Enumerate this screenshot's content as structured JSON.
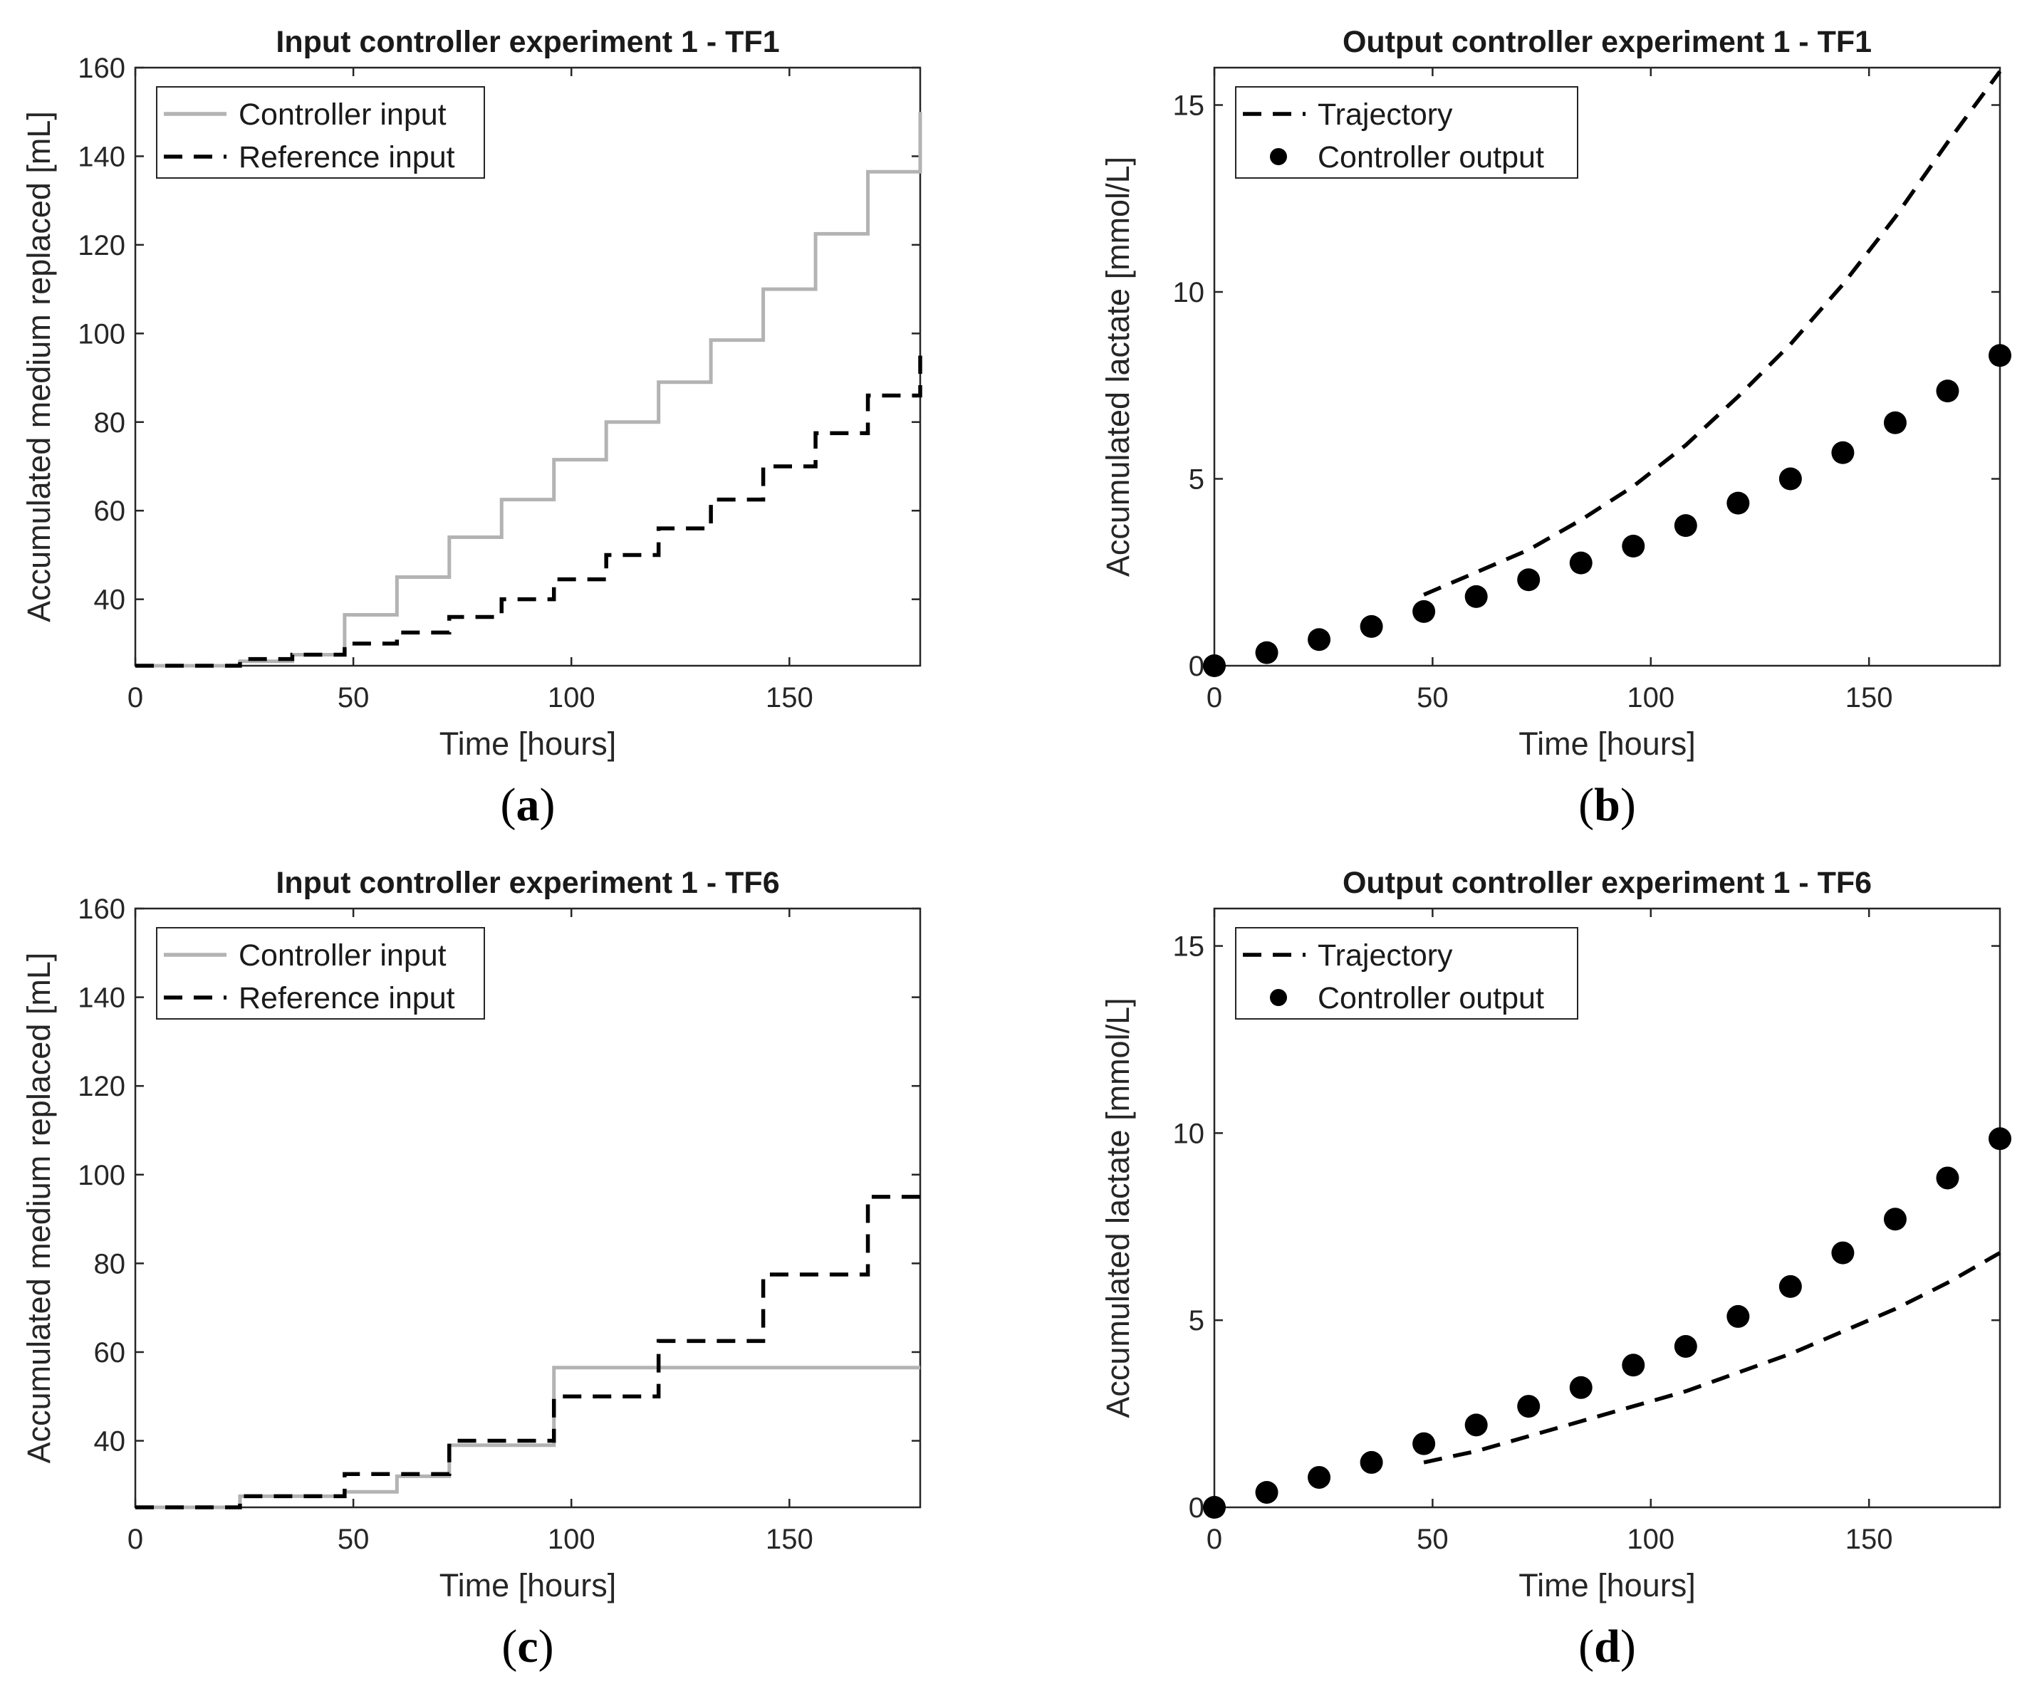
{
  "chart_data": [
    {
      "id": "a",
      "type": "line",
      "panel_label": "(a)",
      "panel_letter": "a",
      "title": "Input controller experiment 1 - TF1",
      "xlabel": "Time [hours]",
      "ylabel": "Accumulated medium replaced [mL]",
      "xlim": [
        0,
        180
      ],
      "ylim": [
        25,
        160
      ],
      "xticks": [
        "0",
        "50",
        "100",
        "150"
      ],
      "yticks": [
        "40",
        "60",
        "80",
        "100",
        "120",
        "140",
        "160"
      ],
      "legend_position": "top-left",
      "series": [
        {
          "name": "Controller input",
          "style": "step-solid",
          "color": "#b3b3b3",
          "x": [
            0,
            24,
            36,
            48,
            60,
            72,
            84,
            96,
            108,
            120,
            132,
            144,
            156,
            168,
            180
          ],
          "y": [
            25,
            26,
            27.5,
            36.5,
            45,
            54,
            62.5,
            71.5,
            80,
            89,
            98.5,
            110,
            122.5,
            136.5,
            150
          ]
        },
        {
          "name": "Reference input",
          "style": "step-dashed",
          "color": "#000000",
          "x": [
            0,
            24,
            36,
            48,
            60,
            72,
            84,
            96,
            108,
            120,
            132,
            144,
            156,
            168,
            180
          ],
          "y": [
            25,
            26.5,
            27.5,
            30,
            32.5,
            36,
            40,
            44.5,
            50,
            56,
            62.5,
            70,
            77.5,
            86,
            95
          ]
        }
      ]
    },
    {
      "id": "b",
      "type": "line",
      "panel_label": "(b)",
      "panel_letter": "b",
      "title": "Output controller experiment 1 - TF1",
      "xlabel": "Time [hours]",
      "ylabel": "Accumulated lactate [mmol/L]",
      "xlim": [
        0,
        180
      ],
      "ylim": [
        0,
        16
      ],
      "xticks": [
        "0",
        "50",
        "100",
        "150"
      ],
      "yticks": [
        "0",
        "5",
        "10",
        "15"
      ],
      "legend_position": "top-left",
      "series": [
        {
          "name": "Trajectory",
          "style": "dashed",
          "color": "#000000",
          "x": [
            48,
            60,
            72,
            84,
            96,
            108,
            120,
            132,
            144,
            156,
            168,
            180
          ],
          "y": [
            1.9,
            2.5,
            3.1,
            3.9,
            4.8,
            5.9,
            7.2,
            8.6,
            10.2,
            12.0,
            14.0,
            15.9
          ]
        },
        {
          "name": "Controller output",
          "style": "markers",
          "color": "#000000",
          "x": [
            0,
            12,
            24,
            36,
            48,
            60,
            72,
            84,
            96,
            108,
            120,
            132,
            144,
            156,
            168,
            180
          ],
          "y": [
            0,
            0.35,
            0.7,
            1.05,
            1.45,
            1.85,
            2.3,
            2.75,
            3.2,
            3.75,
            4.35,
            5.0,
            5.7,
            6.5,
            7.35,
            8.3
          ]
        }
      ]
    },
    {
      "id": "c",
      "type": "line",
      "panel_label": "(c)",
      "panel_letter": "c",
      "title": "Input controller experiment 1 - TF6",
      "xlabel": "Time [hours]",
      "ylabel": "Accumulated medium replaced [mL]",
      "xlim": [
        0,
        180
      ],
      "ylim": [
        25,
        160
      ],
      "xticks": [
        "0",
        "50",
        "100",
        "150"
      ],
      "yticks": [
        "40",
        "60",
        "80",
        "100",
        "120",
        "140",
        "160"
      ],
      "legend_position": "top-left",
      "series": [
        {
          "name": "Controller input",
          "style": "step-solid",
          "color": "#b3b3b3",
          "x": [
            0,
            24,
            48,
            60,
            72,
            96,
            180
          ],
          "y": [
            25,
            27.5,
            28.5,
            32,
            39,
            56.5,
            56.5
          ]
        },
        {
          "name": "Reference input",
          "style": "step-dashed",
          "color": "#000000",
          "x": [
            0,
            24,
            48,
            72,
            96,
            120,
            144,
            168,
            180
          ],
          "y": [
            25,
            27.5,
            32.5,
            40,
            50,
            62.5,
            77.5,
            95,
            95
          ]
        }
      ]
    },
    {
      "id": "d",
      "type": "line",
      "panel_label": "(d)",
      "panel_letter": "d",
      "title": "Output controller experiment 1 - TF6",
      "xlabel": "Time [hours]",
      "ylabel": "Accumulated lactate [mmol/L]",
      "xlim": [
        0,
        180
      ],
      "ylim": [
        0,
        16
      ],
      "xticks": [
        "0",
        "50",
        "100",
        "150"
      ],
      "yticks": [
        "0",
        "5",
        "10",
        "15"
      ],
      "legend_position": "top-left",
      "series": [
        {
          "name": "Trajectory",
          "style": "dashed",
          "color": "#000000",
          "x": [
            48,
            60,
            72,
            84,
            96,
            108,
            120,
            132,
            144,
            156,
            168,
            180
          ],
          "y": [
            1.2,
            1.5,
            1.9,
            2.3,
            2.7,
            3.1,
            3.6,
            4.1,
            4.7,
            5.3,
            6.0,
            6.8
          ]
        },
        {
          "name": "Controller output",
          "style": "markers",
          "color": "#000000",
          "x": [
            0,
            12,
            24,
            36,
            48,
            60,
            72,
            84,
            96,
            108,
            120,
            132,
            144,
            156,
            168,
            180
          ],
          "y": [
            0,
            0.4,
            0.8,
            1.2,
            1.7,
            2.2,
            2.7,
            3.2,
            3.8,
            4.3,
            5.1,
            5.9,
            6.8,
            7.7,
            8.8,
            9.85
          ]
        }
      ]
    }
  ]
}
